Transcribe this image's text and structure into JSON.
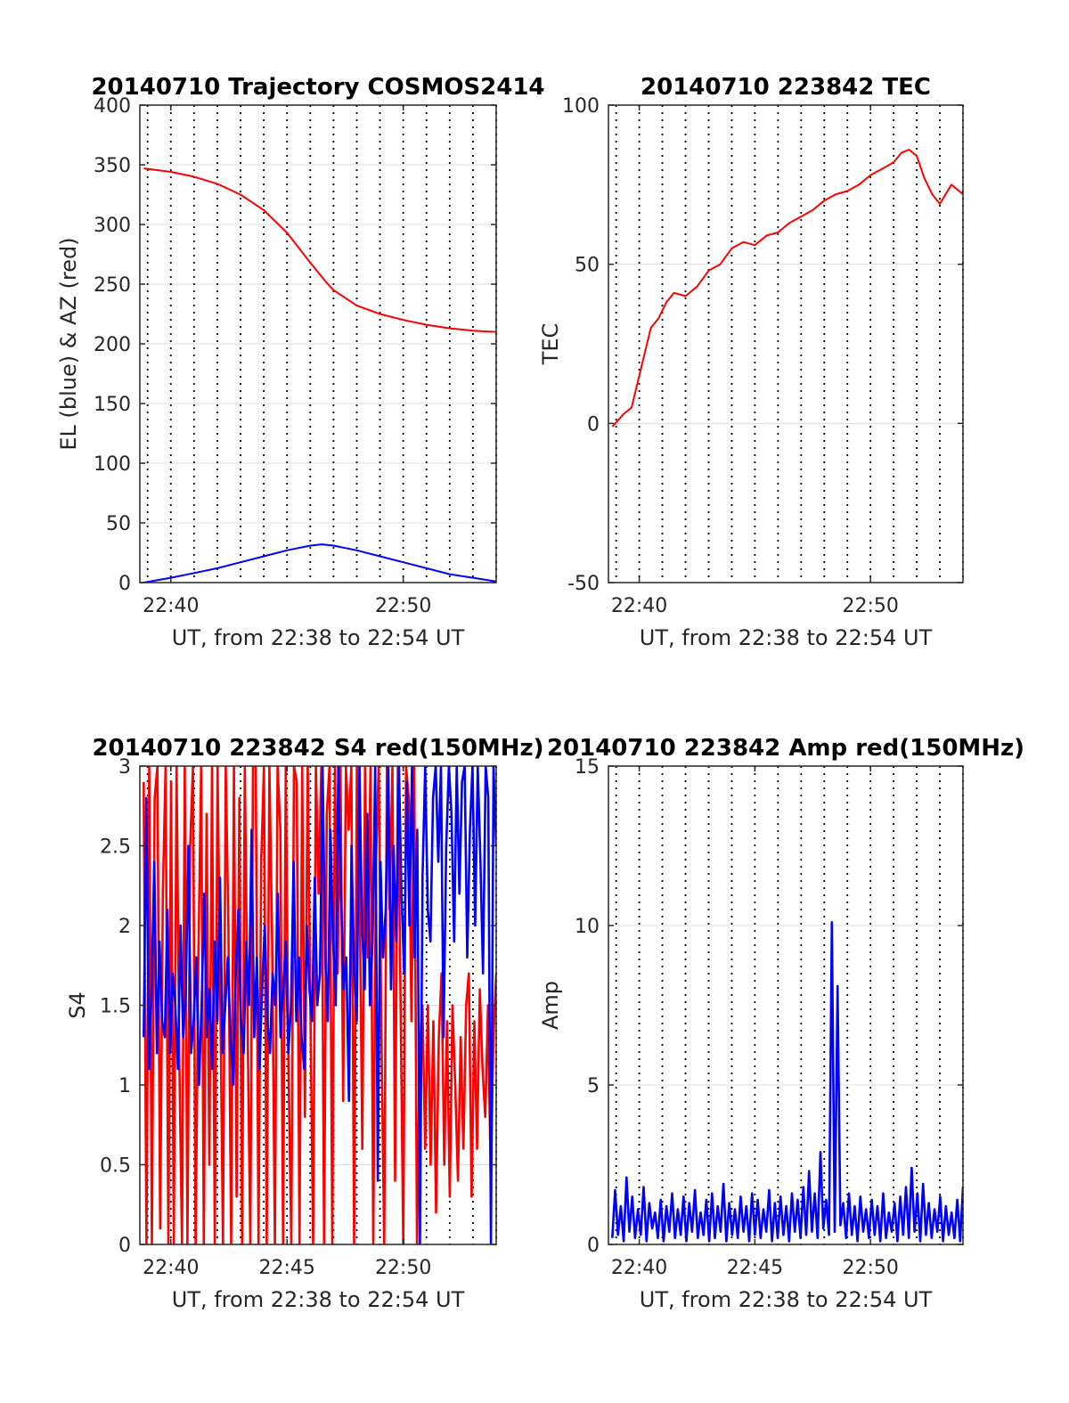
{
  "colors": {
    "red": "#ff0000",
    "blue": "#0000ff",
    "axis": "#262626",
    "grid": "#dcdcdc",
    "vgrid": "#000000"
  },
  "chart_data": [
    {
      "id": "trajectory",
      "type": "line",
      "title": "20140710 Trajectory COSMOS2414",
      "xlabel": "UT, from 22:38 to 22:54 UT",
      "ylabel": "EL (blue) & AZ (red)",
      "xlim": [
        "22:38:40",
        "22:54:00"
      ],
      "ylim": [
        0,
        400
      ],
      "yticks": [
        0,
        50,
        100,
        150,
        200,
        250,
        300,
        350,
        400
      ],
      "xticks": [
        {
          "t": "22:40",
          "label": "22:40"
        },
        {
          "t": "22:50",
          "label": "22:50"
        }
      ],
      "dotted_minute_lines": true,
      "grid": true,
      "series": [
        {
          "color": "red",
          "x": [
            "22:38:50",
            "22:40:00",
            "22:41:00",
            "22:42:00",
            "22:43:00",
            "22:44:00",
            "22:45:00",
            "22:46:00",
            "22:46:40",
            "22:47:00",
            "22:48:00",
            "22:49:00",
            "22:50:00",
            "22:51:00",
            "22:52:00",
            "22:53:00",
            "22:54:00"
          ],
          "y": [
            347,
            344,
            340,
            334,
            325,
            312,
            293,
            268,
            252,
            245,
            232,
            225,
            220,
            216,
            213,
            211,
            210
          ]
        },
        {
          "color": "blue",
          "x": [
            "22:38:50",
            "22:40:00",
            "22:41:00",
            "22:42:00",
            "22:43:00",
            "22:44:00",
            "22:45:00",
            "22:46:00",
            "22:46:30",
            "22:47:00",
            "22:48:00",
            "22:49:00",
            "22:50:00",
            "22:51:00",
            "22:52:00",
            "22:53:00",
            "22:54:00"
          ],
          "y": [
            0,
            4,
            8,
            12,
            17,
            22,
            27,
            31,
            32,
            31,
            27,
            22,
            17,
            12,
            7,
            4,
            1
          ]
        }
      ]
    },
    {
      "id": "tec",
      "type": "line",
      "title": "20140710 223842 TEC",
      "xlabel": "UT, from 22:38 to 22:54 UT",
      "ylabel": "TEC",
      "xlim": [
        "22:38:40",
        "22:54:00"
      ],
      "ylim": [
        -50,
        100
      ],
      "yticks": [
        -50,
        0,
        50,
        100
      ],
      "xticks": [
        {
          "t": "22:40",
          "label": "22:40"
        },
        {
          "t": "22:50",
          "label": "22:50"
        }
      ],
      "dotted_minute_lines": true,
      "grid": true,
      "series": [
        {
          "color": "red",
          "x": [
            "22:38:50",
            "22:39:20",
            "22:39:40",
            "22:40:00",
            "22:40:10",
            "22:40:30",
            "22:40:50",
            "22:41:10",
            "22:41:30",
            "22:42:00",
            "22:42:30",
            "22:43:00",
            "22:43:30",
            "22:44:00",
            "22:44:30",
            "22:45:00",
            "22:45:30",
            "22:46:00",
            "22:46:30",
            "22:47:00",
            "22:47:30",
            "22:48:00",
            "22:48:30",
            "22:49:00",
            "22:49:30",
            "22:50:00",
            "22:50:30",
            "22:51:00",
            "22:51:20",
            "22:51:40",
            "22:52:00",
            "22:52:20",
            "22:52:40",
            "22:53:00",
            "22:53:30",
            "22:54:00"
          ],
          "y": [
            -1,
            3,
            5,
            15,
            20,
            30,
            33,
            38,
            41,
            40,
            43,
            48,
            50,
            55,
            57,
            56,
            59,
            60,
            63,
            65,
            67,
            70,
            72,
            73,
            75,
            78,
            80,
            82,
            85,
            86,
            84,
            77,
            72,
            69,
            75,
            72
          ]
        }
      ]
    },
    {
      "id": "s4",
      "type": "line",
      "title": "20140710 223842 S4 red(150MHz)",
      "xlabel": "UT, from 22:38 to 22:54 UT",
      "ylabel": "S4",
      "xlim": [
        "22:38:40",
        "22:54:00"
      ],
      "ylim": [
        0,
        3
      ],
      "yticks": [
        0,
        0.5,
        1,
        1.5,
        2,
        2.5,
        3
      ],
      "xticks": [
        {
          "t": "22:40",
          "label": "22:40"
        },
        {
          "t": "22:45",
          "label": "22:45"
        },
        {
          "t": "22:50",
          "label": "22:50"
        }
      ],
      "dotted_minute_lines": true,
      "grid": true,
      "series": [
        {
          "color": "red",
          "x_start": "22:38:50",
          "x_end": "22:54:00",
          "y": [
            2.9,
            0,
            3,
            0,
            2.8,
            3,
            0.1,
            2.2,
            3,
            0,
            2.9,
            0,
            3,
            1.2,
            0,
            3,
            0,
            2.5,
            3,
            0,
            1.8,
            3,
            0,
            2.7,
            0.5,
            3,
            0,
            3,
            1.6,
            0,
            3,
            2,
            0,
            3,
            0.3,
            2.8,
            0,
            3,
            1.4,
            0,
            3,
            3,
            0,
            2.4,
            3,
            0,
            3,
            1.9,
            0,
            3,
            2.6,
            0,
            3,
            1.1,
            0,
            3,
            2.9,
            0,
            3,
            0.8,
            3,
            1.5,
            0,
            3,
            2.2,
            3,
            0,
            2.7,
            3,
            0,
            3,
            1.7,
            3,
            0.9,
            3,
            2.6,
            3,
            0,
            3,
            2.3,
            0.6,
            3,
            1.8,
            3,
            0,
            2.4,
            3,
            1.3,
            0,
            3,
            2.1,
            3,
            0.4,
            3,
            1.5,
            0,
            3,
            2.8,
            1.4,
            3,
            0,
            1.2,
            1.5,
            0.6,
            1.5,
            0.5,
            1.4,
            0.2,
            1.3,
            1.7,
            0.5,
            1.4,
            0.3,
            1.5,
            1.0,
            0.4,
            1.3,
            0.6,
            1.5,
            1.7,
            0.3,
            1.4,
            0.6,
            1.6,
            1.1,
            0.8,
            1.5,
            0.4,
            1.3,
            1.7
          ]
        },
        {
          "color": "blue",
          "x_start": "22:38:50",
          "x_end": "22:54:00",
          "y": [
            1.3,
            2.8,
            1.1,
            1.6,
            2.4,
            1.2,
            1.9,
            1.4,
            1.3,
            2.1,
            1.2,
            1.7,
            1.5,
            1.1,
            2.0,
            1.3,
            1.6,
            2.5,
            1.2,
            1.4,
            1.8,
            1.0,
            1.5,
            2.2,
            1.3,
            1.6,
            1.1,
            1.9,
            1.4,
            2.3,
            1.2,
            1.5,
            1.8,
            1.3,
            1.0,
            1.7,
            2.1,
            1.4,
            1.2,
            1.9,
            1.5,
            2.6,
            1.3,
            1.8,
            1.1,
            1.6,
            2.0,
            1.4,
            1.2,
            1.7,
            1.5,
            2.2,
            1.3,
            1.6,
            1.9,
            1.2,
            1.5,
            2.4,
            1.4,
            1.8,
            1.3,
            1.1,
            2.0,
            1.6,
            1.4,
            2.3,
            1.5,
            1.7,
            3,
            1.8,
            1.4,
            2.6,
            1.9,
            1.5,
            3,
            2.2,
            1.6,
            1.8,
            0.9,
            2.5,
            1.7,
            1.4,
            3,
            2.0,
            1.6,
            2.7,
            1.5,
            1.9,
            3,
            0.4,
            2.4,
            1.8,
            2.1,
            3,
            1.6,
            2.5,
            1.9,
            3,
            2.2,
            1.7,
            2.9,
            2.0,
            3,
            1.8,
            2.6,
            0,
            2.3,
            3,
            2.1,
            1.9,
            2.8,
            3,
            2.4,
            3,
            1.3,
            2.5,
            3,
            2.7,
            1.9,
            3,
            2.2,
            2.9,
            3,
            1.8,
            2.6,
            3,
            2.0,
            3,
            2.4,
            1.7,
            3,
            2.8,
            0,
            3,
            2.5
          ]
        }
      ]
    },
    {
      "id": "amp",
      "type": "line",
      "title": "20140710 223842 Amp red(150MHz)",
      "xlabel": "UT, from 22:38 to 22:54 UT",
      "ylabel": "Amp",
      "xlim": [
        "22:38:40",
        "22:54:00"
      ],
      "ylim": [
        0,
        15
      ],
      "yticks": [
        0,
        5,
        10,
        15
      ],
      "xticks": [
        {
          "t": "22:40",
          "label": "22:40"
        },
        {
          "t": "22:45",
          "label": "22:45"
        },
        {
          "t": "22:50",
          "label": "22:50"
        }
      ],
      "dotted_minute_lines": true,
      "grid": true,
      "series": [
        {
          "color": "blue",
          "x_start": "22:38:50",
          "x_end": "22:54:00",
          "y": [
            0.2,
            1.7,
            0.3,
            1.2,
            0.1,
            2.1,
            0.4,
            1.5,
            0.2,
            1.1,
            0.3,
            1.8,
            0.1,
            1.3,
            0.5,
            1.0,
            0.2,
            1.4,
            0.1,
            1.2,
            0.4,
            1.6,
            0.2,
            1.1,
            0.3,
            1.5,
            0.1,
            1.3,
            0.4,
            1.7,
            0.2,
            1.0,
            0.3,
            1.4,
            0.1,
            1.6,
            0.2,
            1.2,
            0.4,
            1.9,
            0.1,
            1.3,
            0.3,
            1.1,
            0.2,
            1.5,
            0.4,
            1.2,
            0.1,
            1.6,
            0.3,
            1.4,
            0.2,
            1.1,
            0.4,
            1.7,
            0.1,
            1.3,
            0.2,
            1.5,
            0.3,
            1.2,
            0.1,
            1.6,
            0.4,
            1.4,
            0.2,
            1.8,
            0.3,
            2.3,
            0.4,
            1.6,
            0.2,
            2.9,
            0.5,
            1.4,
            0.3,
            10.1,
            0.4,
            8.1,
            0.6,
            1.3,
            0.2,
            1.6,
            0.3,
            1.2,
            0.1,
            1.5,
            0.4,
            1.1,
            0.2,
            1.4,
            0.3,
            1.2,
            0.1,
            1.6,
            0.2,
            1.0,
            0.4,
            1.3,
            0.1,
            1.5,
            0.3,
            1.8,
            0.2,
            2.4,
            0.4,
            1.6,
            0.1,
            1.9,
            0.3,
            1.3,
            0.2,
            1.1,
            0.4,
            1.5,
            0.1,
            1.2,
            0.3,
            1.0,
            0.2,
            1.4,
            0.1,
            1.8
          ]
        }
      ]
    }
  ]
}
